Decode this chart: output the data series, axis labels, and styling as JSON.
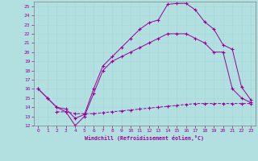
{
  "xlabel": "Windchill (Refroidissement éolien,°C)",
  "background_color": "#b2e0e0",
  "grid_color": "#a8d8d8",
  "line_color": "#990099",
  "xlim": [
    -0.5,
    23.5
  ],
  "ylim": [
    12,
    25.5
  ],
  "xticks": [
    0,
    1,
    2,
    3,
    4,
    5,
    6,
    7,
    8,
    9,
    10,
    11,
    12,
    13,
    14,
    15,
    16,
    17,
    18,
    19,
    20,
    21,
    22,
    23
  ],
  "yticks": [
    12,
    13,
    14,
    15,
    16,
    17,
    18,
    19,
    20,
    21,
    22,
    23,
    24,
    25
  ],
  "series1_x": [
    0,
    1,
    2,
    3,
    4,
    5,
    6,
    7,
    8,
    9,
    10,
    11,
    12,
    13,
    14,
    15,
    16,
    17,
    18,
    19,
    20,
    21,
    22,
    23
  ],
  "series1_y": [
    16,
    15,
    14,
    13.5,
    12,
    13,
    15.5,
    18,
    19,
    19.5,
    20,
    20.5,
    21,
    21.5,
    22,
    22,
    22,
    21.5,
    21,
    20,
    20,
    16,
    15,
    14.5
  ],
  "series2_x": [
    0,
    1,
    2,
    3,
    4,
    5,
    6,
    7,
    8,
    9,
    10,
    11,
    12,
    13,
    14,
    15,
    16,
    17,
    18,
    19,
    20,
    21,
    22,
    23
  ],
  "series2_y": [
    16,
    15,
    14,
    13.8,
    12.8,
    13.2,
    16,
    18.5,
    19.5,
    20.5,
    21.5,
    22.5,
    23.2,
    23.5,
    25.2,
    25.3,
    25.3,
    24.6,
    23.3,
    22.5,
    20.8,
    20.3,
    16.2,
    14.8
  ],
  "series3_x": [
    2,
    3,
    4,
    5,
    6,
    7,
    8,
    9,
    10,
    11,
    12,
    13,
    14,
    15,
    16,
    17,
    18,
    19,
    20,
    21,
    22,
    23
  ],
  "series3_y": [
    13.5,
    13.5,
    13.3,
    13.3,
    13.3,
    13.4,
    13.5,
    13.6,
    13.7,
    13.8,
    13.9,
    14.0,
    14.1,
    14.2,
    14.3,
    14.4,
    14.4,
    14.4,
    14.4,
    14.4,
    14.4,
    14.4
  ]
}
